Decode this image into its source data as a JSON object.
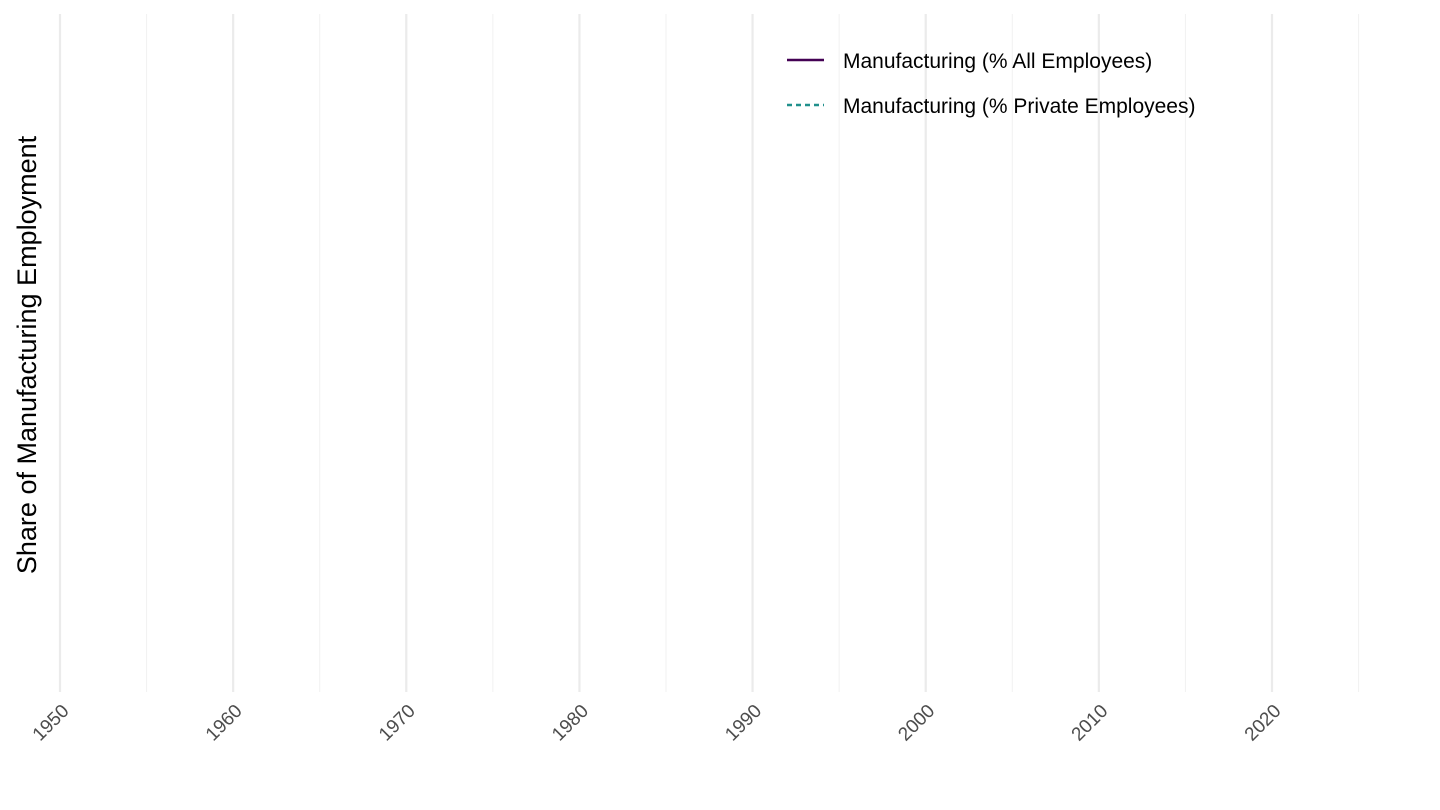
{
  "chart_data": {
    "type": "line",
    "xlabel": "",
    "ylabel": "Share of Manufacturing Employment",
    "xlim": [
      1950,
      2027
    ],
    "x_ticks": [
      "1950",
      "1960",
      "1970",
      "1980",
      "1990",
      "2000",
      "2010",
      "2020"
    ],
    "x_minor_ticks": [
      1955,
      1965,
      1975,
      1985,
      1995,
      2005,
      2015,
      2025
    ],
    "grid": "vertical-only",
    "legend_position": "top-right",
    "series": [
      {
        "name": "Manufacturing (% All Employees)",
        "color": "#440154",
        "dash": "solid",
        "values": []
      },
      {
        "name": "Manufacturing (% Private Employees)",
        "color": "#21908c",
        "dash": "dashed",
        "values": []
      }
    ]
  }
}
